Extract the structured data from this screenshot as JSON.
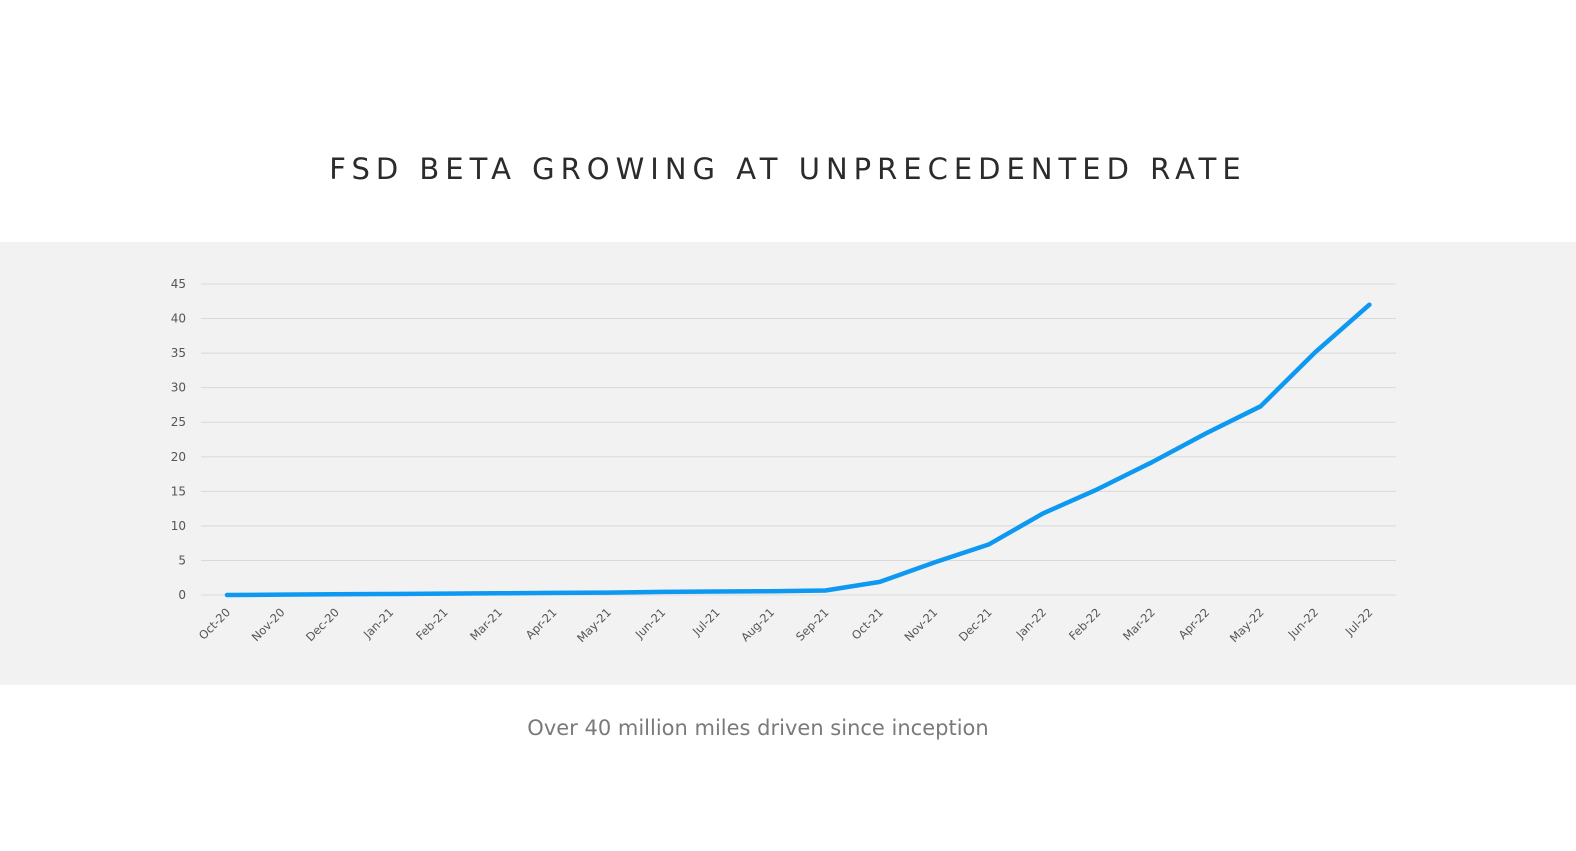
{
  "title": "FSD BETA GROWING AT UNPRECEDENTED RATE",
  "caption": "Over 40 million miles driven since inception",
  "colors": {
    "line": "#0d99f2",
    "band_background": "#f2f2f2",
    "grid": "#d9d9d9"
  },
  "chart_data": {
    "type": "line",
    "title": "",
    "xlabel": "",
    "ylabel": "",
    "ylim": [
      0,
      45
    ],
    "yticks": [
      0,
      5,
      10,
      15,
      20,
      25,
      30,
      35,
      40,
      45
    ],
    "grid": true,
    "legend": "none",
    "categories": [
      "Oct-20",
      "Nov-20",
      "Dec-20",
      "Jan-21",
      "Feb-21",
      "Mar-21",
      "Apr-21",
      "May-21",
      "Jun-21",
      "Jul-21",
      "Aug-21",
      "Sep-21",
      "Oct-21",
      "Nov-21",
      "Dec-21",
      "Jan-22",
      "Feb-22",
      "Mar-22",
      "Apr-22",
      "May-22",
      "Jun-22",
      "Jul-22"
    ],
    "series": [
      {
        "values": [
          0.0,
          0.05,
          0.1,
          0.15,
          0.2,
          0.25,
          0.3,
          0.35,
          0.45,
          0.5,
          0.55,
          0.65,
          1.9,
          4.7,
          7.3,
          11.8,
          15.3,
          19.2,
          23.4,
          27.3,
          35.1,
          42.0
        ]
      }
    ]
  }
}
